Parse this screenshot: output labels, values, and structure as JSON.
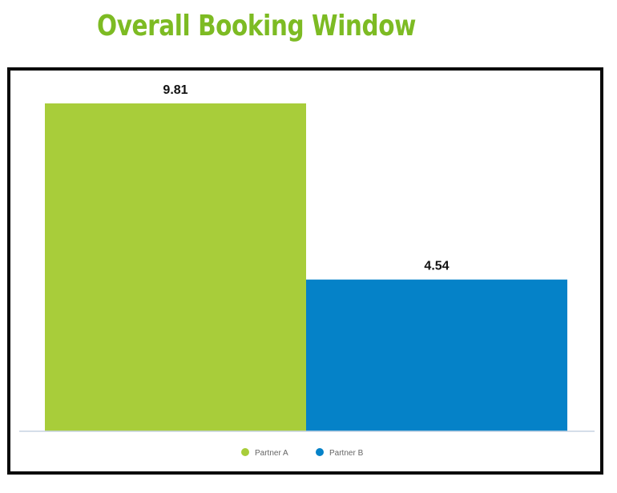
{
  "chart_data": {
    "type": "bar",
    "title": "Overall Booking Window",
    "categories": [
      "Partner A",
      "Partner B"
    ],
    "values": [
      9.81,
      4.54
    ],
    "value_labels": [
      "9.81",
      "4.54"
    ],
    "colors": [
      "#a8cd3a",
      "#0582c8"
    ],
    "ylim": [
      0,
      9.81
    ],
    "grid": false,
    "legend": {
      "position": "bottom",
      "entries": [
        "Partner A",
        "Partner B"
      ]
    }
  }
}
